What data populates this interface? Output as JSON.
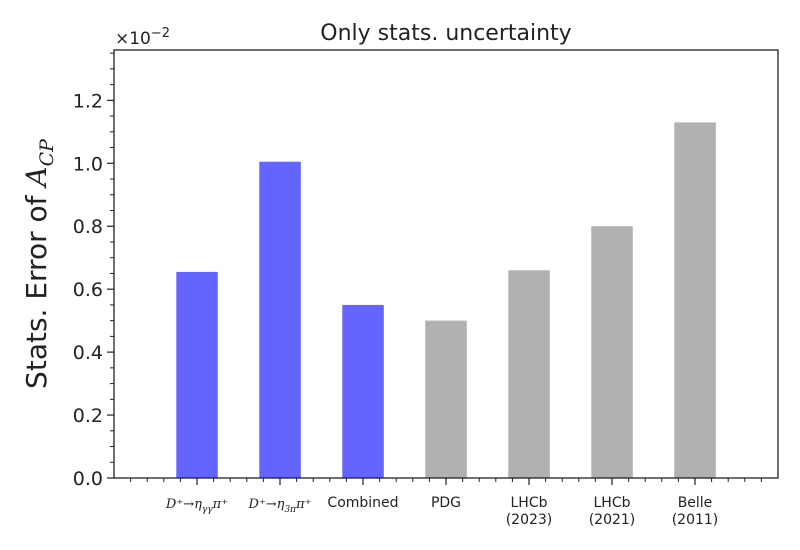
{
  "chart_data": {
    "type": "bar",
    "title": "Only stats. uncertainty",
    "ylabel_prefix": "Stats. Error of ",
    "ylabel_symbol": "A",
    "ylabel_subscript": "CP",
    "y_offset_base": "×10",
    "y_offset_exponent": "−2",
    "ylim": [
      0,
      1.36
    ],
    "yticks": [
      {
        "value": 0.0,
        "label": "0.0"
      },
      {
        "value": 0.2,
        "label": "0.2"
      },
      {
        "value": 0.4,
        "label": "0.4"
      },
      {
        "value": 0.6,
        "label": "0.6"
      },
      {
        "value": 0.8,
        "label": "0.8"
      },
      {
        "value": 1.0,
        "label": "1.0"
      },
      {
        "value": 1.2,
        "label": "1.2"
      }
    ],
    "categories": [
      {
        "lines": [
          "D⁺→η",
          "γγ",
          "π⁺"
        ],
        "math": true,
        "value": 0.655,
        "color": "#6464ff"
      },
      {
        "lines": [
          "D⁺→η",
          "3π",
          "π⁺"
        ],
        "math": true,
        "value": 1.005,
        "color": "#6464ff"
      },
      {
        "lines": [
          "Combined"
        ],
        "math": false,
        "value": 0.55,
        "color": "#6464ff"
      },
      {
        "lines": [
          "PDG"
        ],
        "math": false,
        "value": 0.5,
        "color": "#b1b1b1"
      },
      {
        "lines": [
          "LHCb",
          "(2023)"
        ],
        "math": false,
        "value": 0.66,
        "color": "#b1b1b1"
      },
      {
        "lines": [
          "LHCb",
          "(2021)"
        ],
        "math": false,
        "value": 0.8,
        "color": "#b1b1b1"
      },
      {
        "lines": [
          "Belle",
          "(2011)"
        ],
        "math": false,
        "value": 1.13,
        "color": "#b1b1b1"
      }
    ]
  }
}
